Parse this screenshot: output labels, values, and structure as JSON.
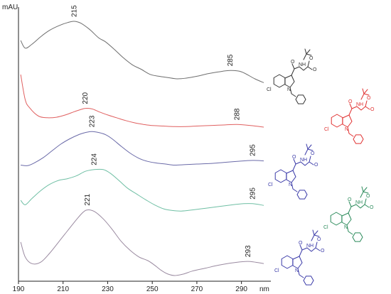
{
  "chart_data": {
    "type": "line",
    "title": "",
    "xlabel": "nm",
    "ylabel": "mAU",
    "xlim": [
      190,
      300
    ],
    "x_ticks": [
      190,
      210,
      230,
      250,
      270,
      290
    ],
    "grid": false,
    "legend": "none",
    "series": [
      {
        "color": "#6e6e6e",
        "peak_labels": [
          "215",
          "285"
        ],
        "peaks": [
          215,
          285
        ],
        "points": [
          [
            191,
            0.7
          ],
          [
            193,
            0.58
          ],
          [
            196,
            0.64
          ],
          [
            200,
            0.76
          ],
          [
            204,
            0.86
          ],
          [
            208,
            0.93
          ],
          [
            212,
            0.98
          ],
          [
            215,
            1.0
          ],
          [
            218,
            0.97
          ],
          [
            222,
            0.87
          ],
          [
            226,
            0.74
          ],
          [
            229,
            0.68
          ],
          [
            233,
            0.56
          ],
          [
            237,
            0.43
          ],
          [
            241,
            0.32
          ],
          [
            245,
            0.25
          ],
          [
            249,
            0.17
          ],
          [
            253,
            0.14
          ],
          [
            257,
            0.12
          ],
          [
            261,
            0.1
          ],
          [
            265,
            0.11
          ],
          [
            270,
            0.14
          ],
          [
            275,
            0.18
          ],
          [
            280,
            0.21
          ],
          [
            285,
            0.23
          ],
          [
            290,
            0.21
          ],
          [
            296,
            0.1
          ],
          [
            300,
            0.04
          ]
        ]
      },
      {
        "color": "#e06060",
        "peak_labels": [
          "220",
          "288"
        ],
        "peaks": [
          220,
          288
        ],
        "points": [
          [
            191,
            1.0
          ],
          [
            193,
            0.55
          ],
          [
            195,
            0.4
          ],
          [
            199,
            0.25
          ],
          [
            203,
            0.22
          ],
          [
            207,
            0.23
          ],
          [
            211,
            0.27
          ],
          [
            215,
            0.33
          ],
          [
            218,
            0.37
          ],
          [
            220,
            0.39
          ],
          [
            223,
            0.38
          ],
          [
            226,
            0.33
          ],
          [
            230,
            0.27
          ],
          [
            234,
            0.22
          ],
          [
            238,
            0.17
          ],
          [
            242,
            0.13
          ],
          [
            246,
            0.1
          ],
          [
            250,
            0.08
          ],
          [
            255,
            0.07
          ],
          [
            260,
            0.06
          ],
          [
            265,
            0.06
          ],
          [
            270,
            0.07
          ],
          [
            276,
            0.08
          ],
          [
            282,
            0.09
          ],
          [
            288,
            0.1
          ],
          [
            294,
            0.08
          ],
          [
            300,
            0.05
          ]
        ]
      },
      {
        "color": "#6a6aa8",
        "peak_labels": [
          "223",
          "295"
        ],
        "peaks": [
          223,
          295
        ],
        "points": [
          [
            191,
            0.02
          ],
          [
            194,
            0.01
          ],
          [
            197,
            0.06
          ],
          [
            201,
            0.16
          ],
          [
            205,
            0.29
          ],
          [
            209,
            0.42
          ],
          [
            213,
            0.52
          ],
          [
            217,
            0.6
          ],
          [
            220,
            0.64
          ],
          [
            223,
            0.66
          ],
          [
            226,
            0.64
          ],
          [
            229,
            0.6
          ],
          [
            232,
            0.52
          ],
          [
            236,
            0.38
          ],
          [
            240,
            0.25
          ],
          [
            244,
            0.15
          ],
          [
            248,
            0.09
          ],
          [
            252,
            0.06
          ],
          [
            256,
            0.04
          ],
          [
            260,
            0.02
          ],
          [
            265,
            0.03
          ],
          [
            270,
            0.04
          ],
          [
            276,
            0.05
          ],
          [
            282,
            0.07
          ],
          [
            288,
            0.09
          ],
          [
            295,
            0.11
          ],
          [
            300,
            0.1
          ]
        ]
      },
      {
        "color": "#6fbfa4",
        "peak_labels": [
          "224",
          "295"
        ],
        "peaks": [
          224,
          295
        ],
        "points": [
          [
            191,
            0.2
          ],
          [
            193,
            0.12
          ],
          [
            196,
            0.23
          ],
          [
            200,
            0.37
          ],
          [
            204,
            0.48
          ],
          [
            208,
            0.55
          ],
          [
            212,
            0.58
          ],
          [
            216,
            0.63
          ],
          [
            220,
            0.71
          ],
          [
            224,
            0.74
          ],
          [
            228,
            0.74
          ],
          [
            231,
            0.68
          ],
          [
            235,
            0.55
          ],
          [
            239,
            0.41
          ],
          [
            243,
            0.31
          ],
          [
            247,
            0.21
          ],
          [
            251,
            0.12
          ],
          [
            255,
            0.05
          ],
          [
            259,
            0.02
          ],
          [
            263,
            0.01
          ],
          [
            268,
            0.03
          ],
          [
            274,
            0.06
          ],
          [
            280,
            0.09
          ],
          [
            286,
            0.12
          ],
          [
            291,
            0.14
          ],
          [
            295,
            0.14
          ],
          [
            300,
            0.11
          ]
        ]
      },
      {
        "color": "#9a8aa0",
        "peak_labels": [
          "221",
          "293"
        ],
        "peaks": [
          221,
          293
        ],
        "points": [
          [
            191,
            0.45
          ],
          [
            193,
            0.25
          ],
          [
            196,
            0.16
          ],
          [
            200,
            0.18
          ],
          [
            204,
            0.3
          ],
          [
            208,
            0.45
          ],
          [
            212,
            0.6
          ],
          [
            216,
            0.75
          ],
          [
            219,
            0.85
          ],
          [
            221,
            0.88
          ],
          [
            224,
            0.86
          ],
          [
            228,
            0.76
          ],
          [
            232,
            0.62
          ],
          [
            236,
            0.46
          ],
          [
            240,
            0.34
          ],
          [
            244,
            0.25
          ],
          [
            248,
            0.2
          ],
          [
            251,
            0.14
          ],
          [
            254,
            0.07
          ],
          [
            257,
            0.02
          ],
          [
            260,
            0.0
          ],
          [
            264,
            0.02
          ],
          [
            268,
            0.06
          ],
          [
            274,
            0.1
          ],
          [
            280,
            0.14
          ],
          [
            286,
            0.17
          ],
          [
            293,
            0.19
          ],
          [
            300,
            0.16
          ]
        ]
      }
    ]
  },
  "structures": [
    {
      "color": "#333333",
      "labels": [
        "Cl",
        "N",
        "NH",
        "O",
        "O",
        "O"
      ]
    },
    {
      "color": "#e03030",
      "labels": [
        "Cl",
        "N",
        "NH",
        "O",
        "O",
        "O"
      ]
    },
    {
      "color": "#3a3aa8",
      "labels": [
        "Cl",
        "N",
        "NH",
        "O",
        "O",
        "O"
      ]
    },
    {
      "color": "#2a8a5a",
      "labels": [
        "Cl",
        "N",
        "NH",
        "O",
        "O",
        "O"
      ]
    },
    {
      "color": "#3a3aa8",
      "labels": [
        "Cl",
        "N",
        "NH",
        "O",
        "O",
        "O"
      ]
    }
  ]
}
